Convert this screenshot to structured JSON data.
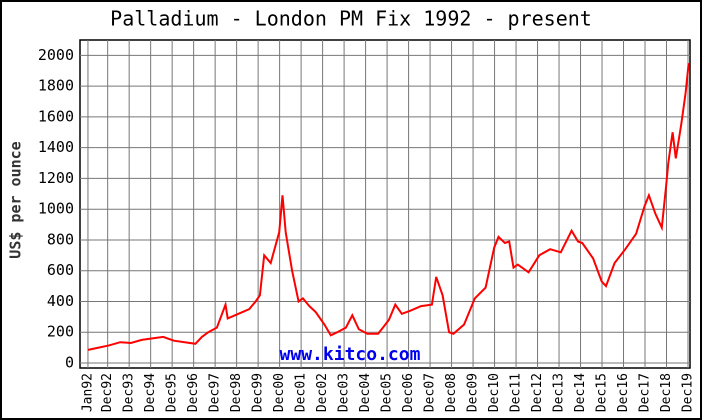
{
  "chart_data": {
    "type": "line",
    "title": "Palladium - London PM Fix 1992 - present",
    "y_label": "US$ per ounce",
    "watermark": "www.kitco.com",
    "color": "#ff0000",
    "grid": true,
    "xlim": [
      1991.63,
      2020.01
    ],
    "ylim": [
      0,
      2100
    ],
    "yticks": [
      0,
      200,
      400,
      600,
      800,
      1000,
      1200,
      1400,
      1600,
      1800,
      2000
    ],
    "xticks": [
      {
        "value": 1992.0,
        "label": "Jan92"
      },
      {
        "value": 1992.917,
        "label": "Dec92"
      },
      {
        "value": 1993.917,
        "label": "Dec93"
      },
      {
        "value": 1994.917,
        "label": "Dec94"
      },
      {
        "value": 1995.917,
        "label": "Dec95"
      },
      {
        "value": 1996.917,
        "label": "Dec96"
      },
      {
        "value": 1997.917,
        "label": "Dec97"
      },
      {
        "value": 1998.917,
        "label": "Dec98"
      },
      {
        "value": 1999.917,
        "label": "Dec99"
      },
      {
        "value": 2000.917,
        "label": "Dec00"
      },
      {
        "value": 2001.917,
        "label": "Dec01"
      },
      {
        "value": 2002.917,
        "label": "Dec02"
      },
      {
        "value": 2003.917,
        "label": "Dec03"
      },
      {
        "value": 2004.917,
        "label": "Dec04"
      },
      {
        "value": 2005.917,
        "label": "Dec05"
      },
      {
        "value": 2006.917,
        "label": "Dec06"
      },
      {
        "value": 2007.917,
        "label": "Dec07"
      },
      {
        "value": 2008.917,
        "label": "Dec08"
      },
      {
        "value": 2009.917,
        "label": "Dec09"
      },
      {
        "value": 2010.917,
        "label": "Dec10"
      },
      {
        "value": 2011.917,
        "label": "Dec11"
      },
      {
        "value": 2012.917,
        "label": "Dec12"
      },
      {
        "value": 2013.917,
        "label": "Dec13"
      },
      {
        "value": 2014.917,
        "label": "Dec14"
      },
      {
        "value": 2015.917,
        "label": "Dec15"
      },
      {
        "value": 2016.917,
        "label": "Dec16"
      },
      {
        "value": 2017.917,
        "label": "Dec17"
      },
      {
        "value": 2018.917,
        "label": "Dec18"
      },
      {
        "value": 2019.917,
        "label": "Dec19"
      }
    ],
    "x": [
      1992.0,
      1992.5,
      1993.0,
      1993.5,
      1994.0,
      1994.5,
      1995.0,
      1995.5,
      1996.0,
      1996.5,
      1997.0,
      1997.3,
      1997.6,
      1998.0,
      1998.4,
      1998.5,
      1999.0,
      1999.5,
      1999.8,
      2000.0,
      2000.2,
      2000.5,
      2000.9,
      2001.05,
      2001.2,
      2001.5,
      2001.8,
      2002.0,
      2002.3,
      2002.6,
      2003.0,
      2003.3,
      2003.6,
      2004.0,
      2004.3,
      2004.6,
      2005.0,
      2005.5,
      2006.0,
      2006.3,
      2006.6,
      2007.0,
      2007.5,
      2008.0,
      2008.2,
      2008.5,
      2008.8,
      2009.0,
      2009.5,
      2010.0,
      2010.5,
      2010.9,
      2011.1,
      2011.4,
      2011.6,
      2011.8,
      2012.0,
      2012.5,
      2013.0,
      2013.5,
      2014.0,
      2014.5,
      2014.8,
      2015.0,
      2015.5,
      2015.9,
      2016.1,
      2016.5,
      2017.0,
      2017.5,
      2017.9,
      2018.1,
      2018.4,
      2018.7,
      2018.9,
      2019.0,
      2019.2,
      2019.35,
      2019.6,
      2019.8,
      2019.95
    ],
    "values": [
      85,
      100,
      115,
      135,
      130,
      150,
      160,
      170,
      145,
      135,
      125,
      170,
      200,
      230,
      380,
      290,
      320,
      350,
      400,
      440,
      700,
      650,
      850,
      1090,
      850,
      600,
      400,
      420,
      370,
      330,
      250,
      180,
      200,
      230,
      310,
      220,
      190,
      190,
      280,
      380,
      320,
      340,
      370,
      380,
      560,
      440,
      200,
      190,
      250,
      420,
      490,
      750,
      820,
      780,
      790,
      620,
      640,
      590,
      700,
      740,
      720,
      860,
      790,
      780,
      680,
      530,
      500,
      650,
      740,
      840,
      1020,
      1090,
      970,
      880,
      1150,
      1300,
      1500,
      1330,
      1550,
      1750,
      1950
    ]
  }
}
